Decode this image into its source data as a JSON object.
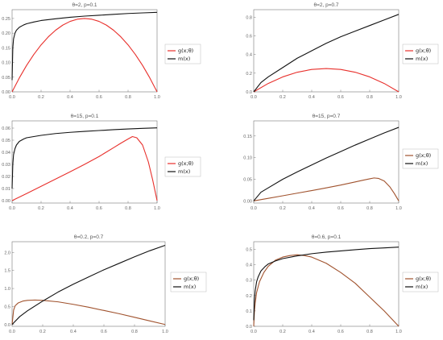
{
  "chart_data": [
    {
      "type": "line",
      "title": "θ=2, p=0.1",
      "xlim": [
        0,
        1
      ],
      "ylim": [
        0,
        0.28
      ],
      "xticks": [
        "0.0",
        "0.2",
        "0.4",
        "0.6",
        "0.8",
        "1.0"
      ],
      "yticks": [
        "0.00",
        "0.05",
        "0.10",
        "0.15",
        "0.20",
        "0.25"
      ],
      "ytick_values": [
        0,
        0.05,
        0.1,
        0.15,
        0.2,
        0.25
      ],
      "legend": "right",
      "series": [
        {
          "name": "g(x;θ)",
          "color": "#e8302c",
          "x": [
            0,
            0.05,
            0.1,
            0.15,
            0.2,
            0.25,
            0.3,
            0.35,
            0.4,
            0.45,
            0.5,
            0.55,
            0.6,
            0.65,
            0.7,
            0.75,
            0.8,
            0.85,
            0.9,
            0.95,
            1.0
          ],
          "y": [
            0,
            0.0475,
            0.09,
            0.1275,
            0.16,
            0.1875,
            0.21,
            0.2275,
            0.24,
            0.2475,
            0.25,
            0.2475,
            0.24,
            0.2275,
            0.21,
            0.1875,
            0.16,
            0.1275,
            0.09,
            0.0475,
            0
          ]
        },
        {
          "name": "m(x)",
          "color": "#111111",
          "x": [
            0,
            0.005,
            0.01,
            0.02,
            0.03,
            0.05,
            0.08,
            0.1,
            0.15,
            0.2,
            0.3,
            0.4,
            0.5,
            0.6,
            0.7,
            0.8,
            0.9,
            1.0
          ],
          "y": [
            0.04,
            0.15,
            0.18,
            0.2,
            0.21,
            0.22,
            0.228,
            0.232,
            0.238,
            0.243,
            0.249,
            0.254,
            0.258,
            0.261,
            0.264,
            0.267,
            0.269,
            0.271
          ]
        }
      ]
    },
    {
      "type": "line",
      "title": "θ=2, p=0.7",
      "xlim": [
        0,
        1
      ],
      "ylim": [
        0,
        0.88
      ],
      "xticks": [
        "0.0",
        "0.2",
        "0.4",
        "0.6",
        "0.8",
        "1.0"
      ],
      "yticks": [
        "0.0",
        "0.2",
        "0.4",
        "0.6",
        "0.8"
      ],
      "ytick_values": [
        0,
        0.2,
        0.4,
        0.6,
        0.8
      ],
      "legend": "right",
      "series": [
        {
          "name": "g(x;θ)",
          "color": "#e8302c",
          "x": [
            0,
            0.1,
            0.2,
            0.3,
            0.4,
            0.5,
            0.6,
            0.7,
            0.8,
            0.9,
            1.0
          ],
          "y": [
            0,
            0.09,
            0.16,
            0.21,
            0.24,
            0.25,
            0.24,
            0.21,
            0.16,
            0.09,
            0
          ]
        },
        {
          "name": "m(x)",
          "color": "#111111",
          "x": [
            0,
            0.05,
            0.1,
            0.2,
            0.3,
            0.4,
            0.5,
            0.6,
            0.7,
            0.8,
            0.9,
            1.0
          ],
          "y": [
            0,
            0.1,
            0.16,
            0.26,
            0.36,
            0.44,
            0.52,
            0.59,
            0.65,
            0.71,
            0.77,
            0.83
          ]
        }
      ]
    },
    {
      "type": "line",
      "title": "θ=15, p=0.1",
      "xlim": [
        0,
        1
      ],
      "ylim": [
        -0.002,
        0.066
      ],
      "xticks": [
        "0.0",
        "0.2",
        "0.4",
        "0.6",
        "0.8",
        "1.0"
      ],
      "yticks": [
        "0.00",
        "0.01",
        "0.02",
        "0.03",
        "0.04",
        "0.05",
        "0.06"
      ],
      "ytick_values": [
        0,
        0.01,
        0.02,
        0.03,
        0.04,
        0.05,
        0.06
      ],
      "legend": "right",
      "series": [
        {
          "name": "g(x;θ)",
          "color": "#e8302c",
          "x": [
            0,
            0.1,
            0.2,
            0.3,
            0.4,
            0.5,
            0.6,
            0.7,
            0.75,
            0.8,
            0.83,
            0.86,
            0.9,
            0.94,
            0.97,
            1.0
          ],
          "y": [
            0,
            0.0058,
            0.0118,
            0.0178,
            0.0238,
            0.03,
            0.0365,
            0.0438,
            0.0475,
            0.051,
            0.053,
            0.052,
            0.046,
            0.032,
            0.017,
            0
          ]
        },
        {
          "name": "m(x)",
          "color": "#111111",
          "x": [
            0,
            0.005,
            0.01,
            0.02,
            0.03,
            0.05,
            0.08,
            0.1,
            0.15,
            0.2,
            0.3,
            0.4,
            0.5,
            0.6,
            0.7,
            0.8,
            0.9,
            1.0
          ],
          "y": [
            0.01,
            0.03,
            0.038,
            0.043,
            0.046,
            0.049,
            0.051,
            0.052,
            0.053,
            0.054,
            0.0555,
            0.0565,
            0.0573,
            0.058,
            0.0587,
            0.0593,
            0.0598,
            0.0602
          ]
        }
      ]
    },
    {
      "type": "line",
      "title": "θ=15, p=0.7",
      "xlim": [
        0,
        1
      ],
      "ylim": [
        -0.005,
        0.185
      ],
      "xticks": [
        "0.0",
        "0.2",
        "0.4",
        "0.6",
        "0.8",
        "1.0"
      ],
      "yticks": [
        "0.00",
        "0.05",
        "0.10",
        "0.15"
      ],
      "ytick_values": [
        0,
        0.05,
        0.1,
        0.15
      ],
      "legend": "right",
      "series": [
        {
          "name": "g(x;θ)",
          "color": "#a0522d",
          "x": [
            0,
            0.1,
            0.2,
            0.3,
            0.4,
            0.5,
            0.6,
            0.7,
            0.75,
            0.8,
            0.83,
            0.86,
            0.9,
            0.94,
            0.97,
            1.0
          ],
          "y": [
            0,
            0.0058,
            0.0118,
            0.0178,
            0.0238,
            0.03,
            0.0365,
            0.0438,
            0.0475,
            0.051,
            0.053,
            0.052,
            0.046,
            0.032,
            0.017,
            0
          ]
        },
        {
          "name": "m(x)",
          "color": "#111111",
          "x": [
            0,
            0.05,
            0.1,
            0.2,
            0.3,
            0.4,
            0.5,
            0.6,
            0.7,
            0.8,
            0.9,
            1.0
          ],
          "y": [
            0,
            0.02,
            0.03,
            0.05,
            0.067,
            0.083,
            0.099,
            0.114,
            0.129,
            0.143,
            0.157,
            0.17
          ]
        }
      ]
    },
    {
      "type": "line",
      "title": "θ=0.2, p=0.7",
      "xlim": [
        0,
        1
      ],
      "ylim": [
        -0.05,
        2.3
      ],
      "xticks": [
        "0.0",
        "0.2",
        "0.4",
        "0.6",
        "0.8",
        "1.0"
      ],
      "yticks": [
        "0.0",
        "0.5",
        "1.0",
        "1.5",
        "2.0"
      ],
      "ytick_values": [
        0,
        0.5,
        1.0,
        1.5,
        2.0
      ],
      "legend": "right",
      "series": [
        {
          "name": "g(x;θ)",
          "color": "#a0522d",
          "x": [
            0,
            0.01,
            0.02,
            0.04,
            0.07,
            0.1,
            0.15,
            0.2,
            0.3,
            0.4,
            0.5,
            0.6,
            0.7,
            0.8,
            0.9,
            1.0
          ],
          "y": [
            0,
            0.4,
            0.52,
            0.6,
            0.65,
            0.67,
            0.68,
            0.67,
            0.63,
            0.56,
            0.48,
            0.39,
            0.3,
            0.2,
            0.1,
            0
          ]
        },
        {
          "name": "m(x)",
          "color": "#111111",
          "x": [
            0,
            0.05,
            0.1,
            0.2,
            0.3,
            0.4,
            0.5,
            0.6,
            0.7,
            0.8,
            0.9,
            1.0
          ],
          "y": [
            0,
            0.22,
            0.38,
            0.65,
            0.9,
            1.12,
            1.32,
            1.52,
            1.7,
            1.88,
            2.05,
            2.2
          ]
        }
      ]
    },
    {
      "type": "line",
      "title": "θ=0.6, p=0.1",
      "xlim": [
        0,
        1
      ],
      "ylim": [
        0,
        0.55
      ],
      "xticks": [
        "0.0",
        "0.2",
        "0.4",
        "0.6",
        "0.8",
        "1.0"
      ],
      "yticks": [
        "0.0",
        "0.1",
        "0.2",
        "0.3",
        "0.4",
        "0.5"
      ],
      "ytick_values": [
        0,
        0.1,
        0.2,
        0.3,
        0.4,
        0.5
      ],
      "legend": "right",
      "series": [
        {
          "name": "g(x;θ)",
          "color": "#a0522d",
          "x": [
            0,
            0.005,
            0.01,
            0.02,
            0.04,
            0.07,
            0.1,
            0.15,
            0.2,
            0.25,
            0.3,
            0.35,
            0.4,
            0.5,
            0.6,
            0.7,
            0.8,
            0.9,
            1.0
          ],
          "y": [
            0,
            0.1,
            0.15,
            0.22,
            0.29,
            0.35,
            0.39,
            0.43,
            0.45,
            0.46,
            0.465,
            0.46,
            0.45,
            0.41,
            0.35,
            0.28,
            0.19,
            0.1,
            0
          ]
        },
        {
          "name": "m(x)",
          "color": "#111111",
          "x": [
            0,
            0.005,
            0.01,
            0.02,
            0.03,
            0.05,
            0.08,
            0.1,
            0.15,
            0.2,
            0.3,
            0.4,
            0.5,
            0.6,
            0.7,
            0.8,
            0.9,
            1.0
          ],
          "y": [
            0.04,
            0.17,
            0.23,
            0.29,
            0.32,
            0.36,
            0.39,
            0.405,
            0.425,
            0.44,
            0.458,
            0.472,
            0.482,
            0.49,
            0.498,
            0.505,
            0.51,
            0.515
          ]
        }
      ]
    }
  ]
}
